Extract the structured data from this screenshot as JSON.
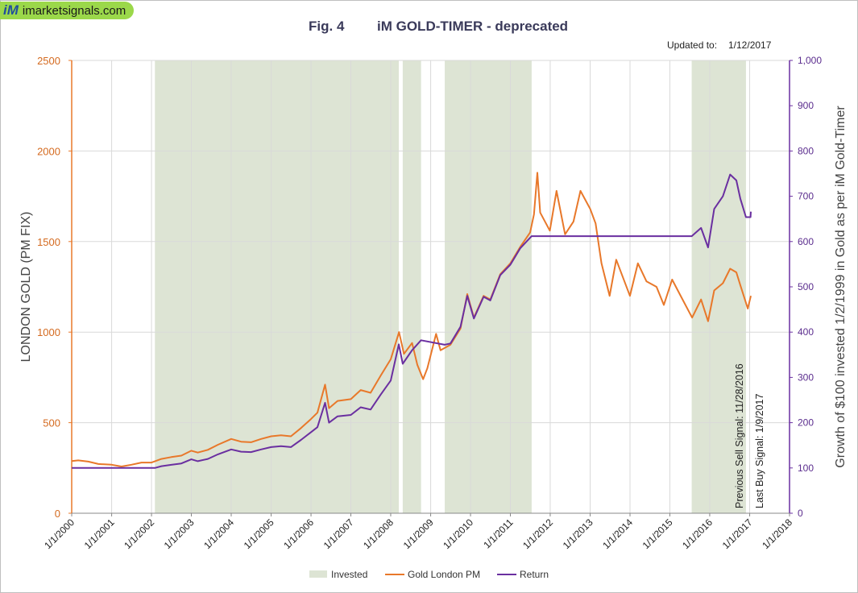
{
  "site": {
    "logo_mark": "iM",
    "logo_text": "imarketsignals.com"
  },
  "colors": {
    "invested": "#dde4d4",
    "gold": "#e8782a",
    "return": "#6a2fa0",
    "grid": "#d9d9d9"
  },
  "chart_data": {
    "type": "line",
    "title_left": "Fig. 4",
    "title_right": "iM GOLD-TIMER  - deprecated",
    "updated_label": "Updated to:",
    "updated_value": "1/12/2017",
    "ylabel_left": "LONDON GOLD (PM FIX)",
    "ylabel_right": "Growth of $100 invested 1/2/1999 in Gold as per iM Gold-Timer",
    "x_range": [
      "2000-01-01",
      "2018-01-01"
    ],
    "x_ticks": [
      "1/1/2000",
      "1/1/2001",
      "1/1/2002",
      "1/1/2003",
      "1/1/2004",
      "1/1/2005",
      "1/1/2006",
      "1/1/2007",
      "1/1/2008",
      "1/1/2009",
      "1/1/2010",
      "1/1/2011",
      "1/1/2012",
      "1/1/2013",
      "1/1/2014",
      "1/1/2015",
      "1/1/2016",
      "1/1/2017",
      "1/1/2018"
    ],
    "y_left": {
      "min": 0,
      "max": 2500,
      "step": 500,
      "tick_labels": [
        "0",
        "500",
        "1000",
        "1500",
        "2000",
        "2500"
      ]
    },
    "y_right": {
      "min": 0,
      "max": 1000,
      "step": 100,
      "tick_labels": [
        "0",
        "100",
        "200",
        "300",
        "400",
        "500",
        "600",
        "700",
        "800",
        "900",
        "1,000"
      ]
    },
    "grid": true,
    "invested_periods": [
      [
        "2002-02-01",
        "2008-03-15"
      ],
      [
        "2008-04-20",
        "2008-10-05"
      ],
      [
        "2009-05-10",
        "2011-07-15"
      ],
      [
        "2015-07-20",
        "2016-11-28"
      ]
    ],
    "series": [
      {
        "name": "Gold London PM",
        "axis": "left",
        "x": [
          "2000-01-01",
          "2000-03-01",
          "2000-06-01",
          "2000-09-01",
          "2001-01-01",
          "2001-04-01",
          "2001-07-01",
          "2001-10-01",
          "2002-01-01",
          "2002-04-01",
          "2002-07-01",
          "2002-10-01",
          "2003-01-01",
          "2003-03-01",
          "2003-06-01",
          "2003-09-01",
          "2004-01-01",
          "2004-04-01",
          "2004-07-01",
          "2004-10-01",
          "2005-01-01",
          "2005-04-01",
          "2005-07-01",
          "2005-10-01",
          "2006-01-01",
          "2006-03-01",
          "2006-05-10",
          "2006-06-15",
          "2006-09-01",
          "2007-01-01",
          "2007-04-01",
          "2007-07-01",
          "2007-10-01",
          "2008-01-01",
          "2008-03-17",
          "2008-05-01",
          "2008-07-15",
          "2008-09-01",
          "2008-10-24",
          "2008-12-01",
          "2009-02-20",
          "2009-04-01",
          "2009-07-01",
          "2009-10-01",
          "2009-12-02",
          "2010-02-01",
          "2010-05-01",
          "2010-07-01",
          "2010-10-01",
          "2011-01-01",
          "2011-04-01",
          "2011-07-01",
          "2011-08-05",
          "2011-09-05",
          "2011-10-01",
          "2011-12-29",
          "2012-02-28",
          "2012-05-16",
          "2012-08-01",
          "2012-10-04",
          "2013-01-01",
          "2013-02-20",
          "2013-04-15",
          "2013-06-28",
          "2013-08-28",
          "2013-12-31",
          "2014-03-14",
          "2014-06-01",
          "2014-09-01",
          "2014-11-07",
          "2015-01-22",
          "2015-04-01",
          "2015-07-24",
          "2015-10-14",
          "2015-12-17",
          "2016-02-11",
          "2016-05-01",
          "2016-07-06",
          "2016-09-01",
          "2016-10-07",
          "2016-12-15",
          "2017-01-12"
        ],
        "values": [
          288,
          292,
          285,
          272,
          268,
          258,
          268,
          280,
          280,
          300,
          310,
          318,
          345,
          335,
          350,
          378,
          410,
          395,
          392,
          410,
          425,
          430,
          425,
          470,
          520,
          555,
          710,
          580,
          620,
          630,
          680,
          665,
          760,
          850,
          1000,
          880,
          940,
          820,
          740,
          800,
          990,
          900,
          930,
          1020,
          1210,
          1080,
          1200,
          1180,
          1320,
          1380,
          1470,
          1550,
          1650,
          1880,
          1660,
          1560,
          1780,
          1540,
          1610,
          1780,
          1680,
          1600,
          1380,
          1200,
          1400,
          1200,
          1380,
          1280,
          1250,
          1150,
          1290,
          1210,
          1080,
          1180,
          1060,
          1230,
          1270,
          1350,
          1330,
          1260,
          1130,
          1200
        ]
      },
      {
        "name": "Return",
        "axis": "right",
        "x": [
          "2000-01-01",
          "2002-02-01",
          "2002-04-01",
          "2002-07-01",
          "2002-10-01",
          "2003-01-01",
          "2003-03-01",
          "2003-06-01",
          "2003-09-01",
          "2004-01-01",
          "2004-04-01",
          "2004-07-01",
          "2004-10-01",
          "2005-01-01",
          "2005-04-01",
          "2005-07-01",
          "2005-10-01",
          "2006-01-01",
          "2006-03-01",
          "2006-05-10",
          "2006-06-15",
          "2006-09-01",
          "2007-01-01",
          "2007-04-01",
          "2007-07-01",
          "2007-10-01",
          "2008-01-01",
          "2008-03-15",
          "2008-04-20",
          "2008-07-15",
          "2008-10-05",
          "2009-05-10",
          "2009-07-01",
          "2009-10-01",
          "2009-12-02",
          "2010-02-01",
          "2010-05-01",
          "2010-07-01",
          "2010-10-01",
          "2011-01-01",
          "2011-04-01",
          "2011-07-15",
          "2015-07-20",
          "2015-10-14",
          "2015-12-17",
          "2016-02-11",
          "2016-05-01",
          "2016-07-06",
          "2016-09-01",
          "2016-10-07",
          "2016-11-28",
          "2017-01-09",
          "2017-01-12"
        ],
        "values": [
          100,
          100,
          104,
          107,
          110,
          119,
          115,
          120,
          130,
          141,
          136,
          135,
          141,
          146,
          148,
          146,
          162,
          179,
          190,
          244,
          200,
          214,
          217,
          234,
          229,
          262,
          293,
          373,
          330,
          360,
          382,
          372,
          375,
          412,
          480,
          430,
          478,
          470,
          526,
          549,
          585,
          612,
          612,
          630,
          587,
          672,
          700,
          748,
          735,
          695,
          654,
          654,
          666
        ]
      }
    ],
    "legend": [
      "Invested",
      "Gold London PM",
      "Return"
    ],
    "legend_position": "bottom",
    "annotations": [
      "Previous Sell Signal:  11/28/2016",
      "Last Buy Signal:  1/9/2017"
    ]
  }
}
